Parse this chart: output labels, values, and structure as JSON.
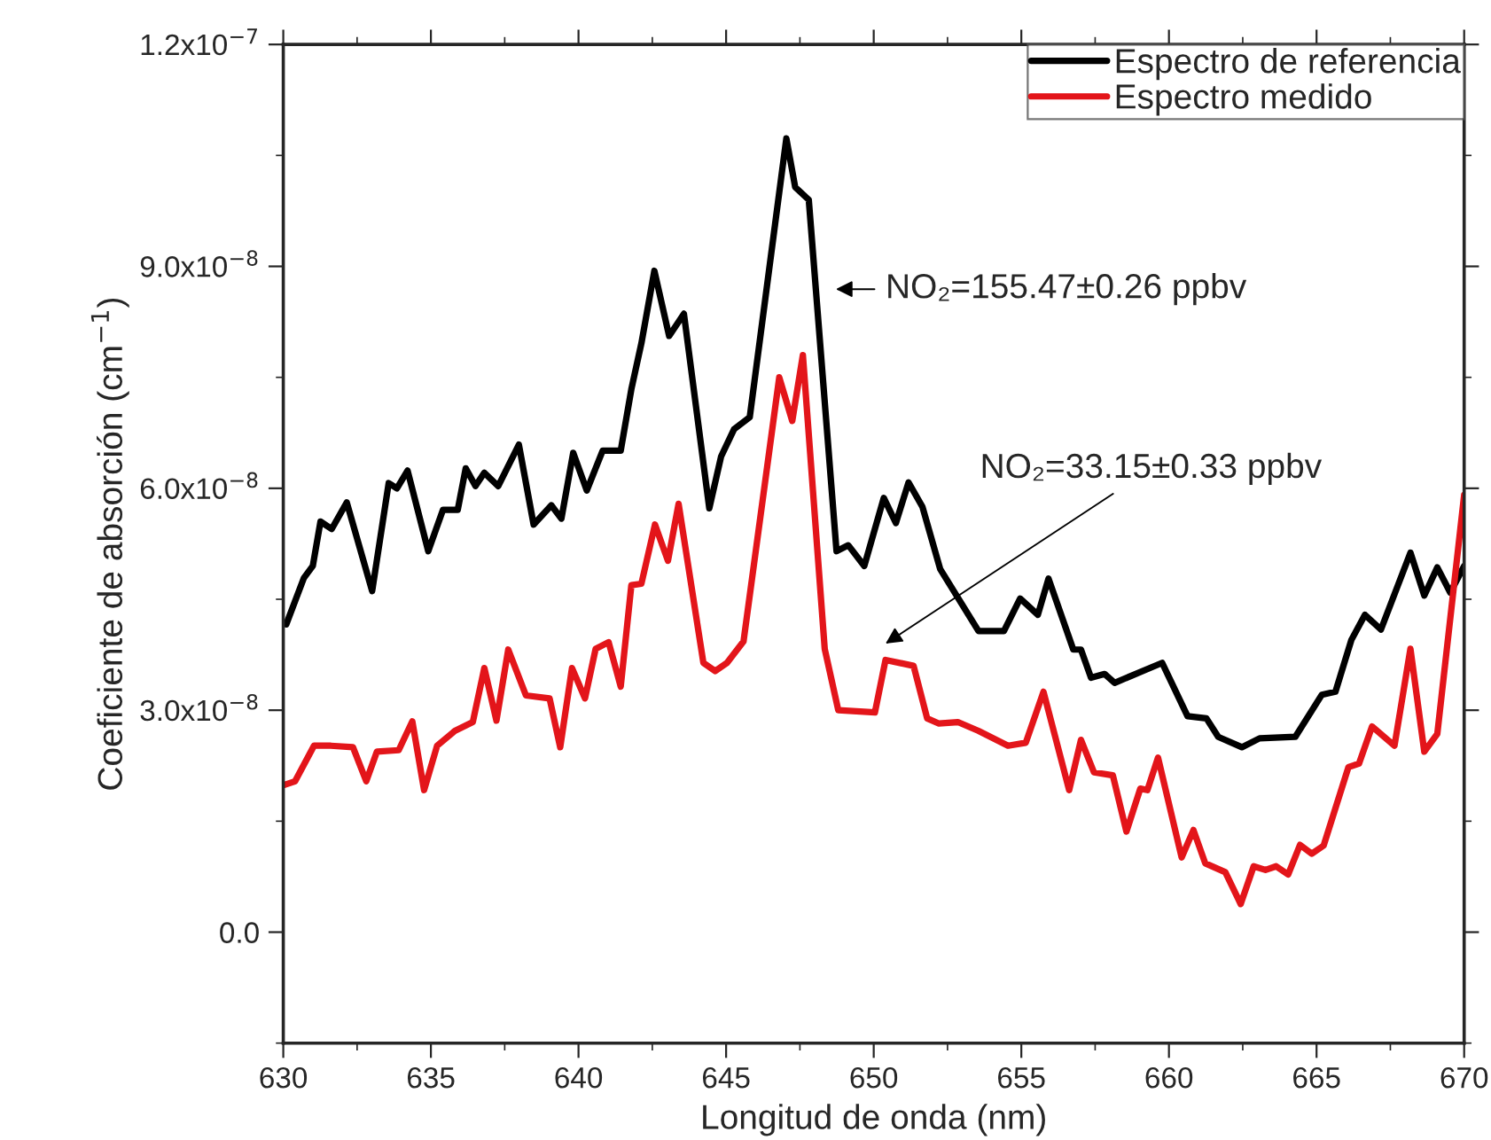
{
  "chart_data": {
    "type": "line",
    "xlabel": "Longitud de onda (nm)",
    "ylabel": "Coeficiente de absorción (cm$^{−1}$)",
    "xlim": [
      630,
      670
    ],
    "xticks": [
      630,
      635,
      640,
      645,
      650,
      655,
      660,
      665,
      670
    ],
    "ylim": [
      -1.5e-08,
      1.2e-07
    ],
    "yticks": [
      {
        "value": 0,
        "label": "0.0"
      },
      {
        "value": 3e-08,
        "label": "3.0x10$^{−8}$"
      },
      {
        "value": 6e-08,
        "label": "6.0x10$^{−8}$"
      },
      {
        "value": 9e-08,
        "label": "9.0x10$^{−8}$"
      },
      {
        "value": 1.2e-07,
        "label": "1.2x10$^{−7}$"
      }
    ],
    "grid": false,
    "legend": "top right",
    "marker": "none",
    "line_style": "solid",
    "annotations": [
      "NO₂=155.47±0.26 ppbv",
      "NO₂=33.15±0.33 ppbv"
    ],
    "series": [
      {
        "name": "Espectro de referencia",
        "color": "#000000",
        "x": [
          630.1,
          630.7,
          631.0,
          631.26,
          631.64,
          632.15,
          633.01,
          633.57,
          633.85,
          634.21,
          634.91,
          635.41,
          635.91,
          636.18,
          636.51,
          636.81,
          637.28,
          637.98,
          638.48,
          639.08,
          639.42,
          639.82,
          640.28,
          640.82,
          641.43,
          641.79,
          642.13,
          642.57,
          643.07,
          643.57,
          644.43,
          644.83,
          645.27,
          645.8,
          647.04,
          647.34,
          647.8,
          648.74,
          649.14,
          649.68,
          650.34,
          650.75,
          651.18,
          651.65,
          652.25,
          653.55,
          654.41,
          654.96,
          655.56,
          655.92,
          656.76,
          657.02,
          657.36,
          657.82,
          658.16,
          659.77,
          660.63,
          661.27,
          661.67,
          662.47,
          663.07,
          664.28,
          665.18,
          665.64,
          666.18,
          666.64,
          667.18,
          668.18,
          668.65,
          669.09,
          669.53,
          670.0
        ],
        "values": [
          4.16e-08,
          4.79e-08,
          4.95e-08,
          5.55e-08,
          5.45e-08,
          5.81e-08,
          4.61e-08,
          6.07e-08,
          6e-08,
          6.24e-08,
          5.15e-08,
          5.71e-08,
          5.71e-08,
          6.27e-08,
          6.03e-08,
          6.21e-08,
          6.03e-08,
          6.59e-08,
          5.51e-08,
          5.77e-08,
          5.59e-08,
          6.48e-08,
          5.97e-08,
          6.51e-08,
          6.51e-08,
          7.34e-08,
          7.96e-08,
          8.94e-08,
          8.06e-08,
          8.36e-08,
          5.73e-08,
          6.43e-08,
          6.8e-08,
          6.96e-08,
          1.073e-07,
          1.007e-07,
          9.9e-08,
          5.15e-08,
          5.23e-08,
          4.95e-08,
          5.87e-08,
          5.53e-08,
          6.08e-08,
          5.75e-08,
          4.91e-08,
          4.07e-08,
          4.07e-08,
          4.51e-08,
          4.29e-08,
          4.78e-08,
          3.82e-08,
          3.82e-08,
          3.44e-08,
          3.49e-08,
          3.37e-08,
          3.64e-08,
          2.92e-08,
          2.89e-08,
          2.64e-08,
          2.5e-08,
          2.62e-08,
          2.64e-08,
          3.21e-08,
          3.25e-08,
          3.95e-08,
          4.29e-08,
          4.09e-08,
          5.13e-08,
          4.55e-08,
          4.93e-08,
          4.59e-08,
          4.95e-08
        ]
      },
      {
        "name": "Espectro medido",
        "color": "#e3151a",
        "x": [
          630.04,
          630.4,
          631.04,
          631.61,
          632.36,
          632.81,
          633.17,
          633.91,
          634.37,
          634.77,
          635.21,
          635.81,
          636.42,
          636.81,
          637.22,
          637.62,
          638.22,
          639.02,
          639.38,
          639.78,
          640.22,
          640.58,
          641.02,
          641.43,
          641.79,
          642.13,
          642.59,
          643.03,
          643.39,
          644.23,
          644.63,
          645.03,
          645.59,
          646.8,
          647.24,
          647.6,
          648.34,
          648.8,
          650.04,
          650.4,
          651.35,
          651.81,
          652.21,
          652.85,
          653.55,
          654.55,
          655.15,
          655.75,
          656.62,
          657.02,
          657.46,
          658.1,
          658.56,
          659.03,
          659.27,
          659.63,
          660.43,
          660.83,
          661.23,
          661.91,
          662.43,
          662.87,
          663.27,
          663.63,
          664.04,
          664.44,
          664.84,
          665.24,
          666.08,
          666.44,
          666.88,
          667.64,
          668.18,
          668.65,
          669.09,
          670.0
        ],
        "values": [
          1.99e-08,
          2.04e-08,
          2.52e-08,
          2.52e-08,
          2.5e-08,
          2.04e-08,
          2.44e-08,
          2.46e-08,
          2.85e-08,
          1.92e-08,
          2.52e-08,
          2.72e-08,
          2.84e-08,
          3.57e-08,
          2.86e-08,
          3.82e-08,
          3.2e-08,
          3.16e-08,
          2.5e-08,
          3.57e-08,
          3.16e-08,
          3.83e-08,
          3.92e-08,
          3.32e-08,
          4.69e-08,
          4.71e-08,
          5.51e-08,
          5.02e-08,
          5.79e-08,
          3.64e-08,
          3.53e-08,
          3.64e-08,
          3.93e-08,
          7.5e-08,
          6.91e-08,
          7.8e-08,
          3.83e-08,
          3e-08,
          2.97e-08,
          3.68e-08,
          3.6e-08,
          2.89e-08,
          2.82e-08,
          2.84e-08,
          2.72e-08,
          2.52e-08,
          2.56e-08,
          3.25e-08,
          1.92e-08,
          2.6e-08,
          2.16e-08,
          2.12e-08,
          1.36e-08,
          1.94e-08,
          1.92e-08,
          2.36e-08,
          1.01e-08,
          1.38e-08,
          9.3e-09,
          8.1e-09,
          3.8e-09,
          8.9e-09,
          8.4e-09,
          8.9e-09,
          7.8e-09,
          1.18e-08,
          1.06e-08,
          1.17e-08,
          2.23e-08,
          2.28e-08,
          2.78e-08,
          2.52e-08,
          3.83e-08,
          2.44e-08,
          2.68e-08,
          5.91e-08
        ]
      }
    ]
  }
}
